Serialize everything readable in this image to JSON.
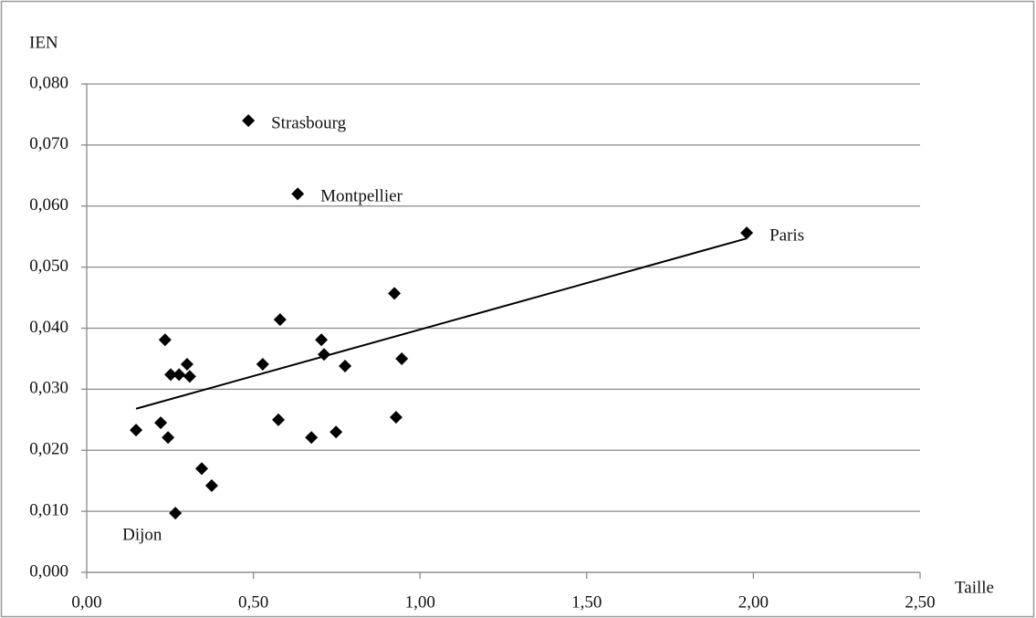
{
  "chart_data": {
    "type": "scatter",
    "y_label": "IEN",
    "x_label": "Taille",
    "xlim": [
      0,
      2.5
    ],
    "ylim": [
      0,
      0.08
    ],
    "xticks": [
      {
        "value": 0,
        "label": "0,00"
      },
      {
        "value": 0.5,
        "label": "0,50"
      },
      {
        "value": 1,
        "label": "1,00"
      },
      {
        "value": 1.5,
        "label": "1,50"
      },
      {
        "value": 2,
        "label": "2,00"
      },
      {
        "value": 2.5,
        "label": "2,50"
      }
    ],
    "yticks": [
      {
        "value": 0,
        "label": "0,000"
      },
      {
        "value": 0.01,
        "label": "0,010"
      },
      {
        "value": 0.02,
        "label": "0,020"
      },
      {
        "value": 0.03,
        "label": "0,030"
      },
      {
        "value": 0.04,
        "label": "0,040"
      },
      {
        "value": 0.05,
        "label": "0,050"
      },
      {
        "value": 0.06,
        "label": "0,060"
      },
      {
        "value": 0.07,
        "label": "0,070"
      },
      {
        "value": 0.08,
        "label": "0,080"
      }
    ],
    "grid": true,
    "color": "#000000",
    "x": [
      0.485,
      0.633,
      1.98,
      0.148,
      0.222,
      0.235,
      0.244,
      0.252,
      0.277,
      0.301,
      0.309,
      0.266,
      0.345,
      0.375,
      0.528,
      0.58,
      0.575,
      0.674,
      0.704,
      0.712,
      0.748,
      0.775,
      0.923,
      0.928,
      0.945
    ],
    "y": [
      0.074,
      0.062,
      0.0556,
      0.0233,
      0.0245,
      0.0381,
      0.0221,
      0.0324,
      0.0324,
      0.0341,
      0.0321,
      0.0097,
      0.017,
      0.0142,
      0.0341,
      0.0414,
      0.025,
      0.0221,
      0.0381,
      0.0357,
      0.023,
      0.0338,
      0.0457,
      0.0254,
      0.035
    ],
    "point_labels": [
      "Strasbourg",
      "Montpellier",
      "Paris",
      null,
      null,
      null,
      null,
      null,
      null,
      null,
      null,
      "Dijon",
      null,
      null,
      null,
      null,
      null,
      null,
      null,
      null,
      null,
      null,
      null,
      null,
      null
    ],
    "trendline": {
      "x": [
        0.148,
        1.98
      ],
      "y": [
        0.0268,
        0.0547
      ]
    }
  }
}
